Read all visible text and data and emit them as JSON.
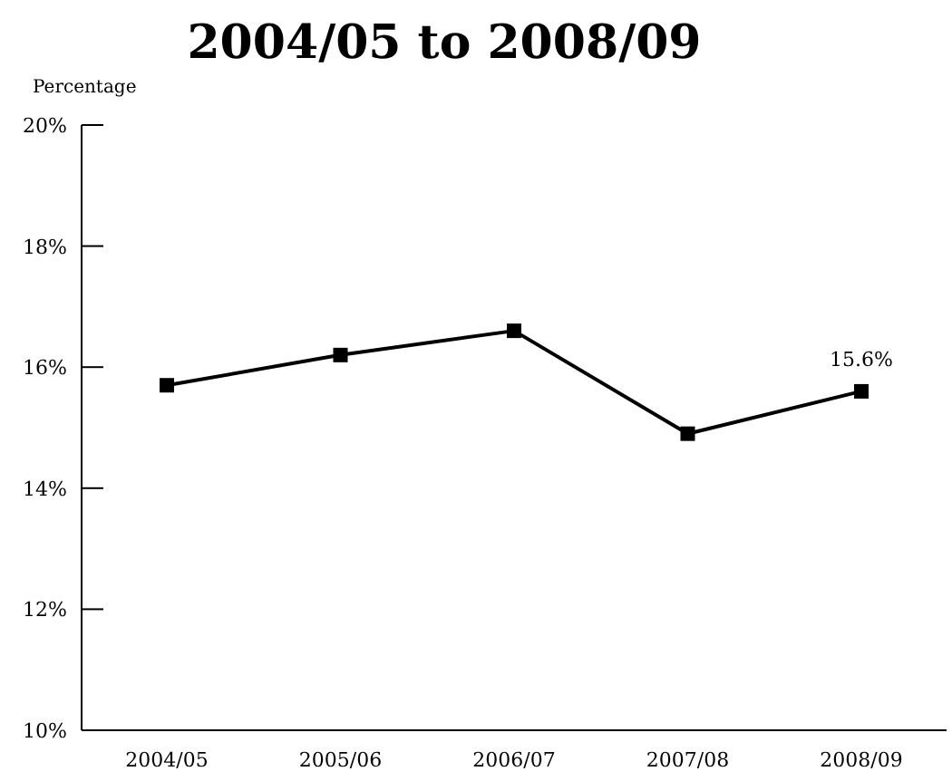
{
  "chart_data": {
    "type": "line",
    "title": "2004/05 to 2008/09",
    "ylabel": "Percentage",
    "categories": [
      "2004/05",
      "2005/06",
      "2006/07",
      "2007/08",
      "2008/09"
    ],
    "series": [
      {
        "color": "#000000",
        "values": [
          15.7,
          16.2,
          16.6,
          14.9,
          15.6
        ],
        "value_labels": [
          null,
          null,
          null,
          null,
          "15.6%"
        ]
      }
    ],
    "ylim": [
      10,
      20
    ],
    "yticks": [
      {
        "value": 10,
        "label": "10%"
      },
      {
        "value": 12,
        "label": "12%"
      },
      {
        "value": 14,
        "label": "14%"
      },
      {
        "value": 16,
        "label": "16%"
      },
      {
        "value": 18,
        "label": "18%"
      },
      {
        "value": 20,
        "label": "20%"
      }
    ],
    "marker": "square",
    "line_style": "solid"
  }
}
